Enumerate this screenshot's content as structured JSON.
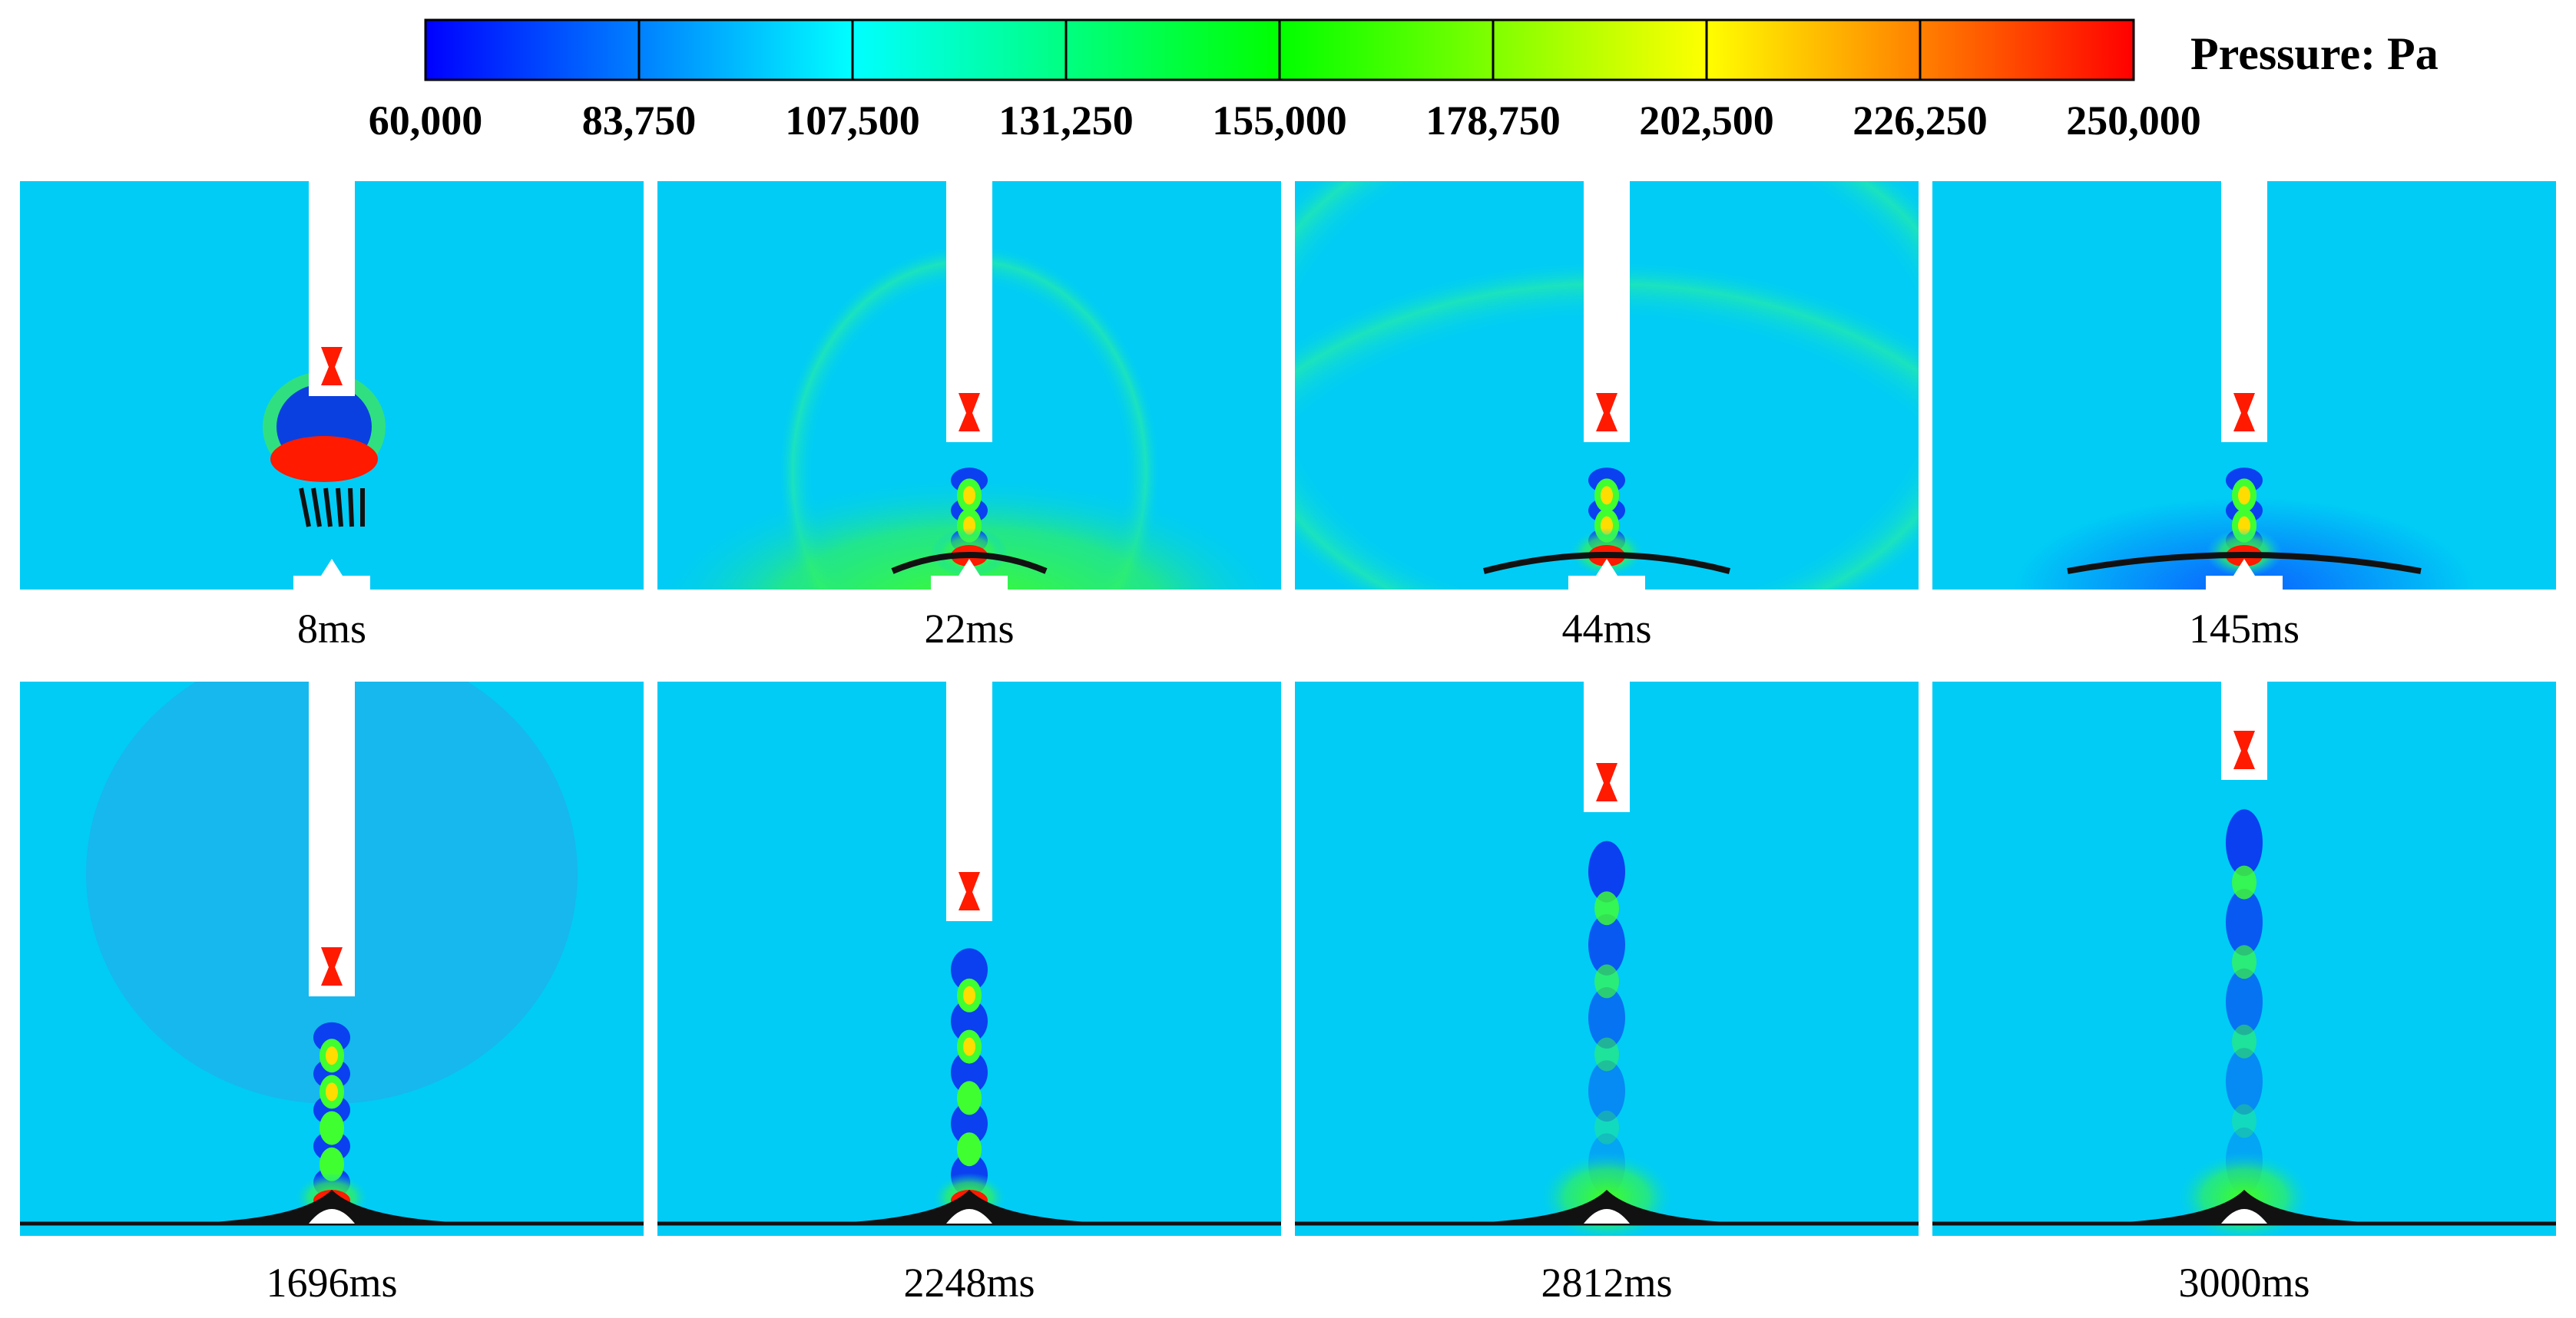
{
  "colorbar": {
    "title": "Pressure: Pa",
    "min": 60000,
    "max": 250000,
    "ticks": [
      "60,000",
      "83,750",
      "107,500",
      "131,250",
      "155,000",
      "178,750",
      "202,500",
      "226,250",
      "250,000"
    ],
    "colors": [
      "#0000ff",
      "#0080ff",
      "#00ffff",
      "#00ff80",
      "#00ff00",
      "#80ff00",
      "#ffff00",
      "#ff8000",
      "#ff0000"
    ]
  },
  "panels": [
    {
      "label": "8ms",
      "stage": "early"
    },
    {
      "label": "22ms",
      "stage": "early"
    },
    {
      "label": "44ms",
      "stage": "early"
    },
    {
      "label": "145ms",
      "stage": "early"
    },
    {
      "label": "1696ms",
      "stage": "late"
    },
    {
      "label": "2248ms",
      "stage": "late"
    },
    {
      "label": "2812ms",
      "stage": "late"
    },
    {
      "label": "3000ms",
      "stage": "late"
    }
  ]
}
